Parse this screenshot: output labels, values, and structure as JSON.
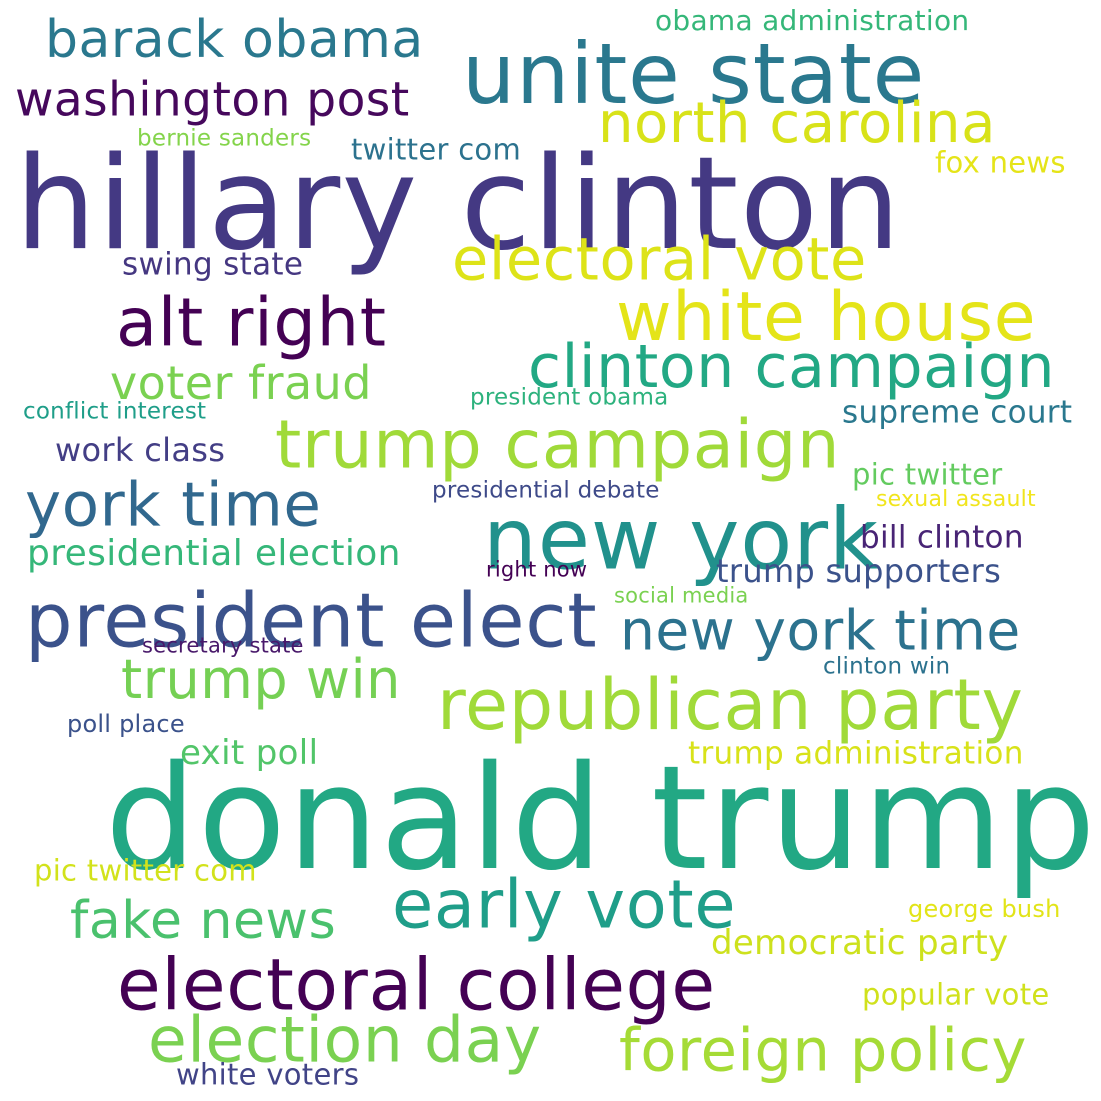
{
  "words": [
    {
      "text": "donald trump",
      "color": "#22a884"
    },
    {
      "text": "hillary clinton",
      "color": "#443983"
    },
    {
      "text": "unite state",
      "color": "#2a788e"
    },
    {
      "text": "new york",
      "color": "#21918c"
    },
    {
      "text": "president elect",
      "color": "#3b528b"
    },
    {
      "text": "electoral college",
      "color": "#440154"
    },
    {
      "text": "republican party",
      "color": "#a0da39"
    },
    {
      "text": "trump campaign",
      "color": "#a0da39"
    },
    {
      "text": "white house",
      "color": "#e4e419"
    },
    {
      "text": "clinton campaign",
      "color": "#22a884"
    },
    {
      "text": "early vote",
      "color": "#1f9e89"
    },
    {
      "text": "alt right",
      "color": "#440154"
    },
    {
      "text": "electoral vote",
      "color": "#dde318"
    },
    {
      "text": "york time",
      "color": "#31688e"
    },
    {
      "text": "election day",
      "color": "#7ad151"
    },
    {
      "text": "foreign policy",
      "color": "#a5db36"
    },
    {
      "text": "north carolina",
      "color": "#d8e219"
    },
    {
      "text": "new york time",
      "color": "#2c728e"
    },
    {
      "text": "barack obama",
      "color": "#2a788e"
    },
    {
      "text": "trump win",
      "color": "#75d054"
    },
    {
      "text": "fake news",
      "color": "#4ac16d"
    },
    {
      "text": "washington post",
      "color": "#46085c"
    },
    {
      "text": "voter fraud",
      "color": "#7ad151"
    },
    {
      "text": "presidential election",
      "color": "#35b779"
    },
    {
      "text": "democratic party",
      "color": "#cde11d"
    },
    {
      "text": "trump administration",
      "color": "#d8e219"
    },
    {
      "text": "exit poll",
      "color": "#52c569"
    },
    {
      "text": "trump supporters",
      "color": "#3b528b"
    },
    {
      "text": "bill clinton",
      "color": "#482475"
    },
    {
      "text": "work class",
      "color": "#433e85"
    },
    {
      "text": "supreme court",
      "color": "#2a788e"
    },
    {
      "text": "swing state",
      "color": "#453781"
    },
    {
      "text": "popular vote",
      "color": "#d0e11c"
    },
    {
      "text": "twitter com",
      "color": "#2c728e"
    },
    {
      "text": "pic twitter com",
      "color": "#d2e21b"
    },
    {
      "text": "pic twitter",
      "color": "#63cb5f"
    },
    {
      "text": "white voters",
      "color": "#414487"
    },
    {
      "text": "obama administration",
      "color": "#35b779"
    },
    {
      "text": "fox news",
      "color": "#e5e419"
    },
    {
      "text": "george bush",
      "color": "#e2e418"
    },
    {
      "text": "presidential debate",
      "color": "#3e4a89"
    },
    {
      "text": "conflict interest",
      "color": "#1f9e89"
    },
    {
      "text": "president obama",
      "color": "#2db27d"
    },
    {
      "text": "poll place",
      "color": "#3b528b"
    },
    {
      "text": "bernie sanders",
      "color": "#84d44b"
    },
    {
      "text": "clinton win",
      "color": "#2c728e"
    },
    {
      "text": "sexual assault",
      "color": "#f1e51d"
    },
    {
      "text": "right now",
      "color": "#440154"
    },
    {
      "text": "social media",
      "color": "#7ad151"
    },
    {
      "text": "secretary state",
      "color": "#48186a"
    }
  ]
}
